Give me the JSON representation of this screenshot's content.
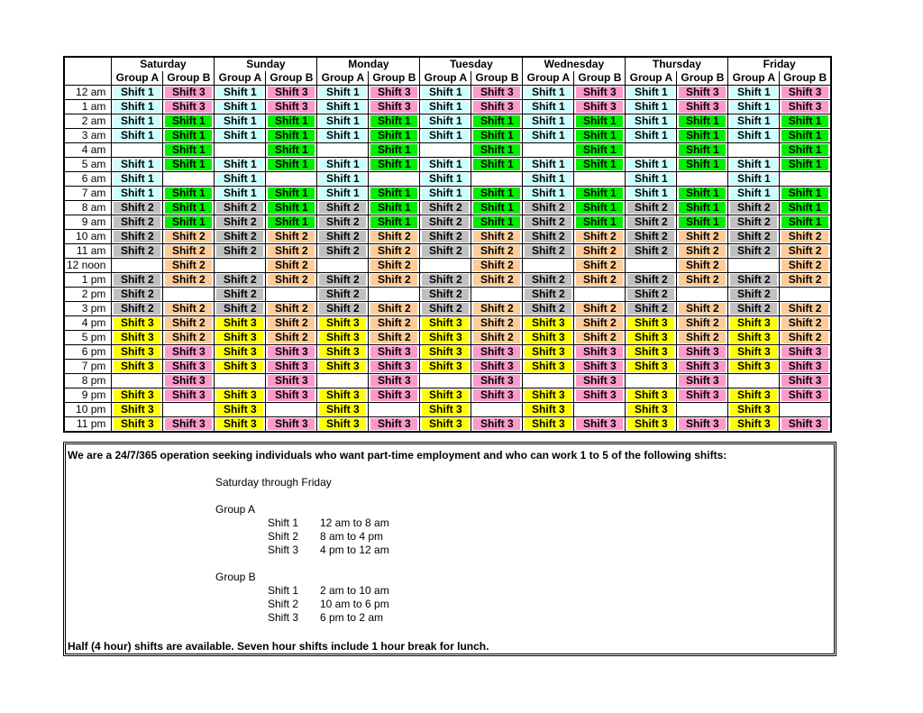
{
  "table": {
    "days": [
      "Saturday",
      "Sunday",
      "Monday",
      "Tuesday",
      "Wednesday",
      "Thursday",
      "Friday"
    ],
    "groups": [
      "Group A",
      "Group B"
    ],
    "group_colors": [
      {
        "Shift 1": "#ccffff",
        "Shift 2": "#c0c0c0",
        "Shift 3": "#ffff00"
      },
      {
        "Shift 1": "#00ee00",
        "Shift 2": "#ffcc99",
        "Shift 3": "#ff99cc"
      }
    ],
    "rows": [
      [
        "12 am",
        "Shift 1",
        "Shift 3",
        "Shift 1",
        "Shift 3",
        "Shift 1",
        "Shift 3",
        "Shift 1",
        "Shift 3",
        "Shift 1",
        "Shift 3",
        "Shift 1",
        "Shift 3",
        "Shift 1",
        "Shift 3"
      ],
      [
        "1 am",
        "Shift 1",
        "Shift 3",
        "Shift 1",
        "Shift 3",
        "Shift 1",
        "Shift 3",
        "Shift 1",
        "Shift 3",
        "Shift 1",
        "Shift 3",
        "Shift 1",
        "Shift 3",
        "Shift 1",
        "Shift 3"
      ],
      [
        "2 am",
        "Shift 1",
        "Shift 1",
        "Shift 1",
        "Shift 1",
        "Shift 1",
        "Shift 1",
        "Shift 1",
        "Shift 1",
        "Shift 1",
        "Shift 1",
        "Shift 1",
        "Shift 1",
        "Shift 1",
        "Shift 1"
      ],
      [
        "3 am",
        "Shift 1",
        "Shift 1",
        "Shift 1",
        "Shift 1",
        "Shift 1",
        "Shift 1",
        "Shift 1",
        "Shift 1",
        "Shift 1",
        "Shift 1",
        "Shift 1",
        "Shift 1",
        "Shift 1",
        "Shift 1"
      ],
      [
        "4 am",
        null,
        "Shift 1",
        null,
        "Shift 1",
        null,
        "Shift 1",
        null,
        "Shift 1",
        null,
        "Shift 1",
        null,
        "Shift 1",
        null,
        "Shift 1"
      ],
      [
        "5 am",
        "Shift 1",
        "Shift 1",
        "Shift 1",
        "Shift 1",
        "Shift 1",
        "Shift 1",
        "Shift 1",
        "Shift 1",
        "Shift 1",
        "Shift 1",
        "Shift 1",
        "Shift 1",
        "Shift 1",
        "Shift 1"
      ],
      [
        "6 am",
        "Shift 1",
        null,
        "Shift 1",
        null,
        "Shift 1",
        null,
        "Shift 1",
        null,
        "Shift 1",
        null,
        "Shift 1",
        null,
        "Shift 1",
        null
      ],
      [
        "7 am",
        "Shift 1",
        "Shift 1",
        "Shift 1",
        "Shift 1",
        "Shift 1",
        "Shift 1",
        "Shift 1",
        "Shift 1",
        "Shift 1",
        "Shift 1",
        "Shift 1",
        "Shift 1",
        "Shift 1",
        "Shift 1"
      ],
      [
        "8 am",
        "Shift 2",
        "Shift 1",
        "Shift 2",
        "Shift 1",
        "Shift 2",
        "Shift 1",
        "Shift 2",
        "Shift 1",
        "Shift 2",
        "Shift 1",
        "Shift 2",
        "Shift 1",
        "Shift 2",
        "Shift 1"
      ],
      [
        "9 am",
        "Shift 2",
        "Shift 1",
        "Shift 2",
        "Shift 1",
        "Shift 2",
        "Shift 1",
        "Shift 2",
        "Shift 1",
        "Shift 2",
        "Shift 1",
        "Shift 2",
        "Shift 1",
        "Shift 2",
        "Shift 1"
      ],
      [
        "10 am",
        "Shift 2",
        "Shift 2",
        "Shift 2",
        "Shift 2",
        "Shift 2",
        "Shift 2",
        "Shift 2",
        "Shift 2",
        "Shift 2",
        "Shift 2",
        "Shift 2",
        "Shift 2",
        "Shift 2",
        "Shift 2"
      ],
      [
        "11 am",
        "Shift 2",
        "Shift 2",
        "Shift 2",
        "Shift 2",
        "Shift 2",
        "Shift 2",
        "Shift 2",
        "Shift 2",
        "Shift 2",
        "Shift 2",
        "Shift 2",
        "Shift 2",
        "Shift 2",
        "Shift 2"
      ],
      [
        "12 noon",
        null,
        "Shift 2",
        null,
        "Shift 2",
        null,
        "Shift 2",
        null,
        "Shift 2",
        null,
        "Shift 2",
        null,
        "Shift 2",
        null,
        "Shift 2"
      ],
      [
        "1 pm",
        "Shift 2",
        "Shift 2",
        "Shift 2",
        "Shift 2",
        "Shift 2",
        "Shift 2",
        "Shift 2",
        "Shift 2",
        "Shift 2",
        "Shift 2",
        "Shift 2",
        "Shift 2",
        "Shift 2",
        "Shift 2"
      ],
      [
        "2 pm",
        "Shift 2",
        null,
        "Shift 2",
        null,
        "Shift 2",
        null,
        "Shift 2",
        null,
        "Shift 2",
        null,
        "Shift 2",
        null,
        "Shift 2",
        null
      ],
      [
        "3 pm",
        "Shift 2",
        "Shift 2",
        "Shift 2",
        "Shift 2",
        "Shift 2",
        "Shift 2",
        "Shift 2",
        "Shift 2",
        "Shift 2",
        "Shift 2",
        "Shift 2",
        "Shift 2",
        "Shift 2",
        "Shift 2"
      ],
      [
        "4 pm",
        "Shift 3",
        "Shift 2",
        "Shift 3",
        "Shift 2",
        "Shift 3",
        "Shift 2",
        "Shift 3",
        "Shift 2",
        "Shift 3",
        "Shift 2",
        "Shift 3",
        "Shift 2",
        "Shift 3",
        "Shift 2"
      ],
      [
        "5 pm",
        "Shift 3",
        "Shift 2",
        "Shift 3",
        "Shift 2",
        "Shift 3",
        "Shift 2",
        "Shift 3",
        "Shift 2",
        "Shift 3",
        "Shift 2",
        "Shift 3",
        "Shift 2",
        "Shift 3",
        "Shift 2"
      ],
      [
        "6 pm",
        "Shift 3",
        "Shift 3",
        "Shift 3",
        "Shift 3",
        "Shift 3",
        "Shift 3",
        "Shift 3",
        "Shift 3",
        "Shift 3",
        "Shift 3",
        "Shift 3",
        "Shift 3",
        "Shift 3",
        "Shift 3"
      ],
      [
        "7 pm",
        "Shift 3",
        "Shift 3",
        "Shift 3",
        "Shift 3",
        "Shift 3",
        "Shift 3",
        "Shift 3",
        "Shift 3",
        "Shift 3",
        "Shift 3",
        "Shift 3",
        "Shift 3",
        "Shift 3",
        "Shift 3"
      ],
      [
        "8 pm",
        null,
        "Shift 3",
        null,
        "Shift 3",
        null,
        "Shift 3",
        null,
        "Shift 3",
        null,
        "Shift 3",
        null,
        "Shift 3",
        null,
        "Shift 3"
      ],
      [
        "9 pm",
        "Shift 3",
        "Shift 3",
        "Shift 3",
        "Shift 3",
        "Shift 3",
        "Shift 3",
        "Shift 3",
        "Shift 3",
        "Shift 3",
        "Shift 3",
        "Shift 3",
        "Shift 3",
        "Shift 3",
        "Shift 3"
      ],
      [
        "10 pm",
        "Shift 3",
        null,
        "Shift 3",
        null,
        "Shift 3",
        null,
        "Shift 3",
        null,
        "Shift 3",
        null,
        "Shift 3",
        null,
        "Shift 3",
        null
      ],
      [
        "11 pm",
        "Shift 3",
        "Shift 3",
        "Shift 3",
        "Shift 3",
        "Shift 3",
        "Shift 3",
        "Shift 3",
        "Shift 3",
        "Shift 3",
        "Shift 3",
        "Shift 3",
        "Shift 3",
        "Shift 3",
        "Shift 3"
      ]
    ]
  },
  "note": {
    "intro": "We are a 24/7/365 operation seeking individuals who want part-time employment and who can work 1 to 5 of the following shifts:",
    "schedule": "Saturday through Friday",
    "groups": [
      {
        "name": "Group A",
        "shifts": [
          [
            "Shift 1",
            "12 am to 8 am"
          ],
          [
            "Shift 2",
            "8 am to 4 pm"
          ],
          [
            "Shift 3",
            "4 pm to 12 am"
          ]
        ]
      },
      {
        "name": "Group B",
        "shifts": [
          [
            "Shift 1",
            "2 am to 10 am"
          ],
          [
            "Shift 2",
            "10 am to 6 pm"
          ],
          [
            "Shift 3",
            "6 pm to 2 am"
          ]
        ]
      }
    ],
    "footer": "Half (4 hour) shifts are available.  Seven hour shifts include 1 hour break for lunch."
  }
}
